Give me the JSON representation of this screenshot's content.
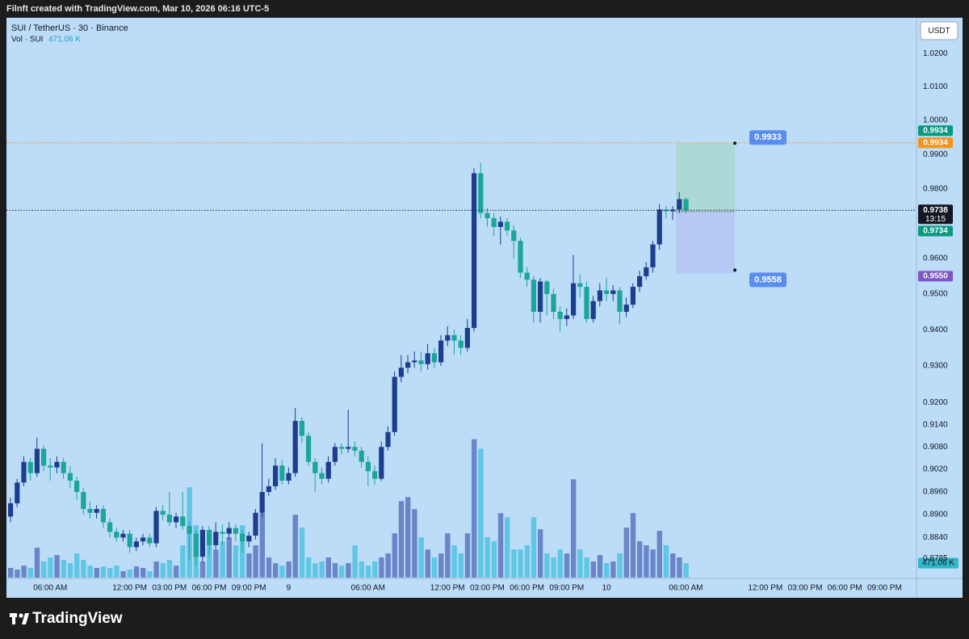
{
  "header": {
    "attribution": "Filnft created with TradingView.com, Mar 10, 2026 06:16 UTC-5",
    "currency_button": "USDT",
    "brand": "TradingView"
  },
  "chart_data": {
    "type": "candlestick",
    "title": "SUI / TetherUS · 30 · Binance",
    "log_scale": true,
    "grid": false,
    "background": "#bcdcf8",
    "up_color": "#1d3d8f",
    "down_color": "#1ba59b",
    "up_volume_color": "#6a86c9",
    "down_volume_color": "#5fc6e4",
    "ylim": [
      0.8736,
      1.0308
    ],
    "yticks": [
      {
        "value": 1.02,
        "label": "1.0200"
      },
      {
        "value": 1.01,
        "label": "1.0100"
      },
      {
        "value": 1.0,
        "label": "1.0000"
      },
      {
        "value": 0.99,
        "label": "0.9900"
      },
      {
        "value": 0.98,
        "label": "0.9800"
      },
      {
        "value": 0.96,
        "label": "0.9600"
      },
      {
        "value": 0.95,
        "label": "0.9500"
      },
      {
        "value": 0.94,
        "label": "0.9400"
      },
      {
        "value": 0.93,
        "label": "0.9300"
      },
      {
        "value": 0.92,
        "label": "0.9200"
      },
      {
        "value": 0.914,
        "label": "0.9140"
      },
      {
        "value": 0.908,
        "label": "0.9080"
      },
      {
        "value": 0.902,
        "label": "0.9020"
      },
      {
        "value": 0.896,
        "label": "0.8960"
      },
      {
        "value": 0.89,
        "label": "0.8900"
      },
      {
        "value": 0.884,
        "label": "0.8840"
      },
      {
        "value": 0.8785,
        "label": "0.8785"
      }
    ],
    "categories": [
      null,
      null,
      null,
      null,
      null,
      null,
      "06:00 AM",
      null,
      null,
      null,
      null,
      null,
      null,
      null,
      null,
      null,
      null,
      null,
      "12:00 PM",
      null,
      null,
      null,
      null,
      null,
      "03:00 PM",
      null,
      null,
      null,
      null,
      null,
      "06:00 PM",
      null,
      null,
      null,
      null,
      null,
      "09:00 PM",
      null,
      null,
      null,
      null,
      null,
      "9",
      null,
      null,
      null,
      null,
      null,
      null,
      null,
      null,
      null,
      null,
      null,
      "06:00 AM",
      null,
      null,
      null,
      null,
      null,
      null,
      null,
      null,
      null,
      null,
      null,
      "12:00 PM",
      null,
      null,
      null,
      null,
      null,
      "03:00 PM",
      null,
      null,
      null,
      null,
      null,
      "06:00 PM",
      null,
      null,
      null,
      null,
      null,
      "09:00 PM",
      null,
      null,
      null,
      null,
      null,
      "10",
      null,
      null,
      null,
      null,
      null,
      null,
      null,
      null,
      null,
      null,
      null,
      "06:00 AM",
      null,
      null,
      null,
      null,
      null,
      null,
      null,
      null,
      null,
      null,
      null,
      "12:00 PM",
      null,
      null,
      null,
      null,
      null,
      "03:00 PM",
      null,
      null,
      null,
      null,
      null,
      "06:00 PM",
      null,
      null,
      null,
      null,
      null,
      "09:00 PM"
    ],
    "open": [
      0.8895,
      0.893,
      0.8985,
      0.904,
      0.901,
      0.9075,
      0.903,
      0.9025,
      0.904,
      0.901,
      0.899,
      0.896,
      0.8915,
      0.8905,
      0.8915,
      0.888,
      0.8855,
      0.884,
      0.885,
      0.8815,
      0.883,
      0.884,
      0.8825,
      0.891,
      0.89,
      0.888,
      0.8895,
      0.887,
      0.885,
      0.879,
      0.886,
      0.882,
      0.8855,
      0.885,
      0.8865,
      0.885,
      0.883,
      0.8845,
      0.8905,
      0.896,
      0.8975,
      0.903,
      0.899,
      0.901,
      0.915,
      0.911,
      0.904,
      0.901,
      0.8995,
      0.904,
      0.908,
      0.9075,
      0.908,
      0.907,
      0.904,
      0.9015,
      0.8995,
      0.908,
      0.912,
      0.927,
      0.9295,
      0.931,
      0.9315,
      0.9305,
      0.9335,
      0.931,
      0.937,
      0.9385,
      0.937,
      0.935,
      0.9405,
      0.9845,
      0.973,
      0.9715,
      0.969,
      0.9705,
      0.968,
      0.965,
      0.956,
      0.954,
      0.945,
      0.9535,
      0.95,
      0.945,
      0.943,
      0.944,
      0.953,
      0.952,
      0.943,
      0.948,
      0.951,
      0.95,
      0.951,
      0.945,
      0.947,
      0.952,
      0.955,
      0.9575,
      0.964,
      0.974,
      0.9735,
      0.974,
      0.977,
      null,
      null,
      null,
      null,
      null,
      null,
      null,
      null,
      null,
      null,
      null,
      null,
      null,
      null,
      null,
      null,
      null,
      null,
      null,
      null,
      null,
      null,
      null,
      null,
      null,
      null,
      null,
      null,
      null,
      null
    ],
    "high": [
      0.8945,
      0.8995,
      0.9055,
      0.905,
      0.9105,
      0.9085,
      0.905,
      0.9055,
      0.905,
      0.903,
      0.9,
      0.897,
      0.8935,
      0.8925,
      0.8925,
      0.889,
      0.8865,
      0.886,
      0.886,
      0.884,
      0.885,
      0.885,
      0.892,
      0.8925,
      0.896,
      0.8905,
      0.896,
      0.888,
      0.886,
      0.887,
      0.887,
      0.888,
      0.8875,
      0.888,
      0.8875,
      0.886,
      0.8855,
      0.8915,
      0.909,
      0.8995,
      0.905,
      0.9045,
      0.9025,
      0.9185,
      0.916,
      0.912,
      0.905,
      0.9025,
      0.9055,
      0.909,
      0.909,
      0.918,
      0.9095,
      0.908,
      0.9055,
      0.903,
      0.9095,
      0.9135,
      0.9285,
      0.933,
      0.933,
      0.934,
      0.934,
      0.936,
      0.935,
      0.9385,
      0.941,
      0.94,
      0.9385,
      0.943,
      0.986,
      0.9875,
      0.9745,
      0.973,
      0.972,
      0.9715,
      0.9695,
      0.966,
      0.9575,
      0.955,
      0.9545,
      0.954,
      0.9515,
      0.9465,
      0.946,
      0.961,
      0.9555,
      0.9535,
      0.9495,
      0.953,
      0.9545,
      0.9525,
      0.952,
      0.949,
      0.953,
      0.9565,
      0.959,
      0.965,
      0.9755,
      0.975,
      0.975,
      0.979,
      0.9775,
      null,
      null,
      null,
      null,
      null,
      null,
      null,
      null,
      null,
      null,
      null,
      null,
      null,
      null,
      null,
      null,
      null,
      null,
      null,
      null,
      null,
      null,
      null,
      null,
      null,
      null,
      null,
      null,
      null,
      null
    ],
    "low": [
      0.888,
      0.892,
      0.8975,
      0.899,
      0.9,
      0.9015,
      0.899,
      0.901,
      0.8995,
      0.897,
      0.894,
      0.89,
      0.889,
      0.889,
      0.8865,
      0.884,
      0.883,
      0.883,
      0.88,
      0.8805,
      0.882,
      0.8815,
      0.8815,
      0.8885,
      0.887,
      0.8865,
      0.886,
      0.878,
      0.8765,
      0.8775,
      0.879,
      0.881,
      0.882,
      0.8835,
      0.883,
      0.88,
      0.8815,
      0.8835,
      0.8895,
      0.895,
      0.8965,
      0.898,
      0.898,
      0.9,
      0.909,
      0.903,
      0.896,
      0.898,
      0.8985,
      0.903,
      0.906,
      0.9065,
      0.9055,
      0.9025,
      0.8975,
      0.898,
      0.899,
      0.907,
      0.911,
      0.9255,
      0.928,
      0.9295,
      0.9285,
      0.929,
      0.9295,
      0.93,
      0.9355,
      0.933,
      0.933,
      0.934,
      0.9395,
      0.9715,
      0.969,
      0.9665,
      0.964,
      0.9665,
      0.96,
      0.9545,
      0.952,
      0.942,
      0.942,
      0.944,
      0.943,
      0.9395,
      0.941,
      0.943,
      0.949,
      0.942,
      0.942,
      0.9465,
      0.948,
      0.948,
      0.9415,
      0.9435,
      0.946,
      0.9505,
      0.954,
      0.956,
      0.9625,
      0.9715,
      0.971,
      0.973,
      0.973,
      null,
      null,
      null,
      null,
      null,
      null,
      null,
      null,
      null,
      null,
      null,
      null,
      null,
      null,
      null,
      null,
      null,
      null,
      null,
      null,
      null,
      null,
      null,
      null,
      null,
      null,
      null,
      null,
      null,
      null
    ],
    "close": [
      0.893,
      0.8985,
      0.904,
      0.901,
      0.9075,
      0.903,
      0.9025,
      0.904,
      0.901,
      0.899,
      0.896,
      0.8915,
      0.8905,
      0.8915,
      0.888,
      0.8855,
      0.884,
      0.885,
      0.8815,
      0.883,
      0.884,
      0.8825,
      0.891,
      0.89,
      0.888,
      0.8895,
      0.887,
      0.885,
      0.879,
      0.886,
      0.882,
      0.8855,
      0.885,
      0.8865,
      0.885,
      0.883,
      0.8845,
      0.8905,
      0.896,
      0.8975,
      0.903,
      0.899,
      0.901,
      0.915,
      0.911,
      0.904,
      0.901,
      0.8995,
      0.904,
      0.908,
      0.9075,
      0.908,
      0.907,
      0.904,
      0.9015,
      0.8995,
      0.908,
      0.912,
      0.927,
      0.9295,
      0.931,
      0.9315,
      0.9305,
      0.9335,
      0.931,
      0.937,
      0.9385,
      0.937,
      0.935,
      0.9405,
      0.9845,
      0.973,
      0.9715,
      0.969,
      0.9705,
      0.968,
      0.965,
      0.956,
      0.954,
      0.945,
      0.9535,
      0.95,
      0.945,
      0.943,
      0.944,
      0.953,
      0.952,
      0.943,
      0.948,
      0.951,
      0.95,
      0.951,
      0.945,
      0.947,
      0.952,
      0.955,
      0.9575,
      0.964,
      0.974,
      0.9735,
      0.974,
      0.977,
      0.9738,
      null,
      null,
      null,
      null,
      null,
      null,
      null,
      null,
      null,
      null,
      null,
      null,
      null,
      null,
      null,
      null,
      null,
      null,
      null,
      null,
      null,
      null,
      null,
      null,
      null,
      null,
      null,
      null,
      null,
      null
    ],
    "volume": {
      "name": "Vol · SUI",
      "vol_ylim": [
        0,
        18200
      ],
      "label": "471.06 K",
      "values": [
        315,
        260,
        390,
        315,
        970,
        525,
        655,
        735,
        575,
        470,
        785,
        575,
        390,
        315,
        365,
        315,
        390,
        210,
        260,
        365,
        315,
        210,
        525,
        470,
        575,
        390,
        1050,
        2935,
        1705,
        525,
        1440,
        915,
        1180,
        1310,
        1050,
        1705,
        785,
        1050,
        2095,
        655,
        470,
        390,
        525,
        2045,
        1625,
        655,
        470,
        525,
        655,
        470,
        390,
        470,
        1050,
        525,
        390,
        525,
        655,
        785,
        1440,
        2490,
        2620,
        2225,
        1310,
        915,
        655,
        785,
        1440,
        1050,
        785,
        1440,
        4500,
        4190,
        1310,
        1180,
        2095,
        1965,
        915,
        915,
        1050,
        1965,
        1570,
        785,
        655,
        915,
        785,
        3195,
        915,
        655,
        525,
        735,
        470,
        525,
        785,
        1625,
        2095,
        1180,
        1050,
        915,
        1520,
        1050,
        785,
        655,
        471.06,
        null,
        null,
        null,
        null,
        null,
        null,
        null,
        null,
        null,
        null,
        null,
        null,
        null,
        null,
        null,
        null,
        null,
        null,
        null,
        null,
        null,
        null,
        null,
        null,
        null,
        null,
        null,
        null,
        null,
        null
      ]
    },
    "price_badges": [
      {
        "value": 0.9934,
        "color": "#f7931a",
        "dotted": true
      },
      {
        "value": 0.9934,
        "color": "#089981",
        "dotted": false
      },
      {
        "value": 0.9738,
        "color": "#131722",
        "dotted": true,
        "countdown": "13:15"
      },
      {
        "value": 0.9734,
        "color": "#089981",
        "dotted": false
      },
      {
        "value": 0.955,
        "label": "0.9550",
        "color": "#7e57c2",
        "dotted": false
      }
    ],
    "position": {
      "target": 0.9933,
      "stop": 0.9558,
      "target_color": "#a9d8cf",
      "stop_color": "#b6c8f5",
      "label_color": "#5b8def"
    }
  }
}
